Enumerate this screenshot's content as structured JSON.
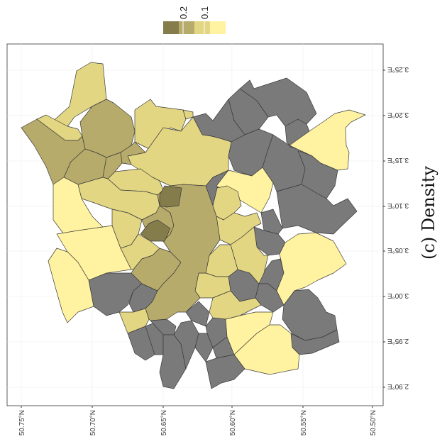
{
  "caption": "(c) Density",
  "legend": {
    "labels": [
      "0.2",
      "0.1"
    ],
    "colors": [
      "#857c4b",
      "#b7ab6b",
      "#e3d683",
      "#fff2a0"
    ]
  },
  "axes": {
    "lat_ticks": [
      "50.75°N",
      "50.70°N",
      "50.65°N",
      "50.60°N",
      "50.55°N",
      "50.50°N"
    ],
    "lon_ticks": [
      "3.25°E",
      "3.20°E",
      "3.15°E",
      "3.10°E",
      "3.05°E",
      "3.00°E",
      "2.95°E",
      "2.90°E"
    ]
  },
  "colors": {
    "no_data": "#7a7a7a",
    "border": "#3a3a3a",
    "panel_border": "#333333",
    "grid": "#ececec"
  }
}
